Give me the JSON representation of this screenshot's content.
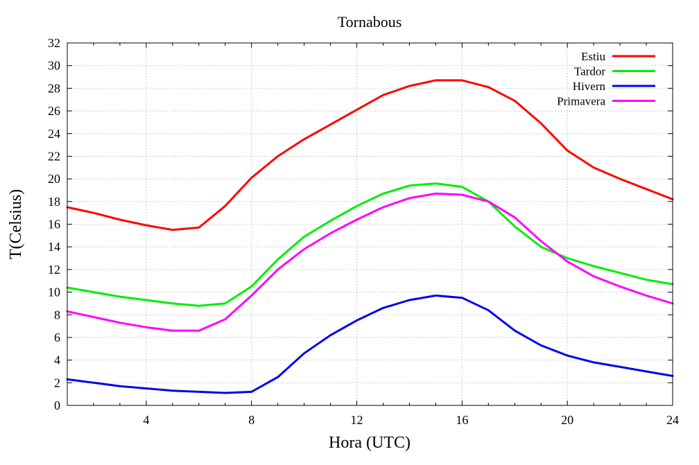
{
  "chart_data": {
    "type": "line",
    "title": "Tornabous",
    "xlabel": "Hora (UTC)",
    "ylabel": "T(Celsius)",
    "xlim": [
      1,
      24
    ],
    "ylim": [
      0,
      32
    ],
    "xticks": [
      4,
      8,
      12,
      16,
      20,
      24
    ],
    "yticks": [
      0,
      2,
      4,
      6,
      8,
      10,
      12,
      14,
      16,
      18,
      20,
      22,
      24,
      26,
      28,
      30,
      32
    ],
    "grid": true,
    "legend_position": "top-right",
    "x": [
      1,
      2,
      3,
      4,
      5,
      6,
      7,
      8,
      9,
      10,
      11,
      12,
      13,
      14,
      15,
      16,
      17,
      18,
      19,
      20,
      21,
      22,
      23,
      24
    ],
    "series": [
      {
        "name": "Estiu",
        "color": "#ff0000",
        "values": [
          17.5,
          17.0,
          16.4,
          15.9,
          15.5,
          15.7,
          17.6,
          20.1,
          22.0,
          23.5,
          24.8,
          26.1,
          27.4,
          28.2,
          28.7,
          28.7,
          28.1,
          26.9,
          24.9,
          22.5,
          21.0,
          20.0,
          19.1,
          18.2
        ]
      },
      {
        "name": "Tardor",
        "color": "#00ee00",
        "values": [
          10.4,
          10.0,
          9.6,
          9.3,
          9.0,
          8.8,
          9.0,
          10.5,
          12.9,
          14.9,
          16.3,
          17.6,
          18.7,
          19.4,
          19.6,
          19.3,
          18.0,
          15.8,
          14.0,
          13.0,
          12.3,
          11.7,
          11.1,
          10.7
        ]
      },
      {
        "name": "Hivern",
        "color": "#0000ee",
        "values": [
          2.3,
          2.0,
          1.7,
          1.5,
          1.3,
          1.2,
          1.1,
          1.2,
          2.5,
          4.6,
          6.2,
          7.5,
          8.6,
          9.3,
          9.7,
          9.5,
          8.4,
          6.6,
          5.3,
          4.4,
          3.8,
          3.4,
          3.0,
          2.6
        ]
      },
      {
        "name": "Primavera",
        "color": "#ff00ff",
        "values": [
          8.3,
          7.8,
          7.3,
          6.9,
          6.6,
          6.6,
          7.6,
          9.7,
          12.0,
          13.8,
          15.2,
          16.4,
          17.5,
          18.3,
          18.7,
          18.6,
          18.0,
          16.6,
          14.5,
          12.7,
          11.4,
          10.5,
          9.7,
          9.0
        ]
      }
    ]
  }
}
